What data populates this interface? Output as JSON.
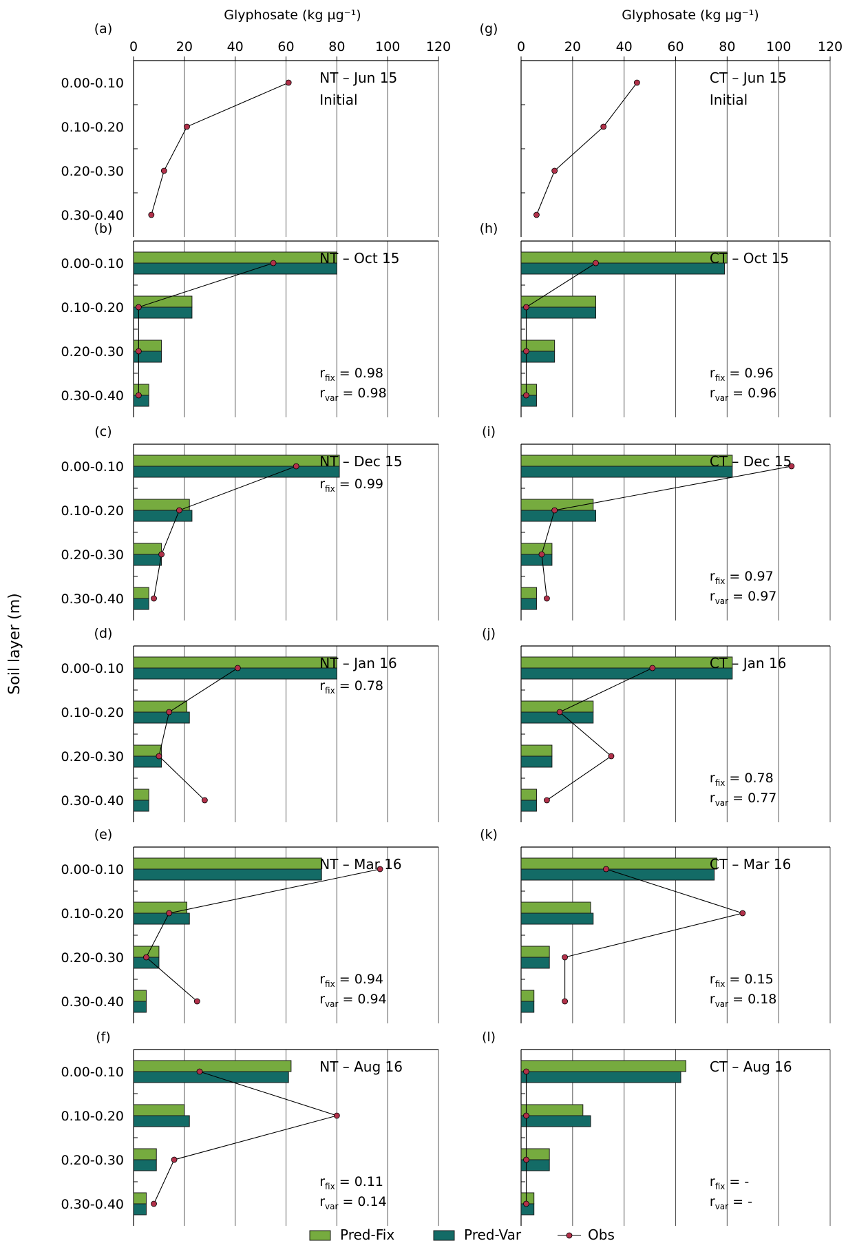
{
  "figure": {
    "x_axis_label_left": "Glyphosate (kg µg⁻¹)",
    "x_axis_label_right": "Glyphosate (kg µg⁻¹)",
    "y_axis_label": "Soil layer (m)",
    "legend": [
      {
        "key": "fix",
        "label": "Pred-Fix",
        "color": "#76ab3f"
      },
      {
        "key": "var",
        "label": "Pred-Var",
        "color": "#136b66"
      },
      {
        "key": "obs",
        "label": "Obs",
        "color": "#b1314a"
      }
    ]
  },
  "chart_data": {
    "type": "bar",
    "orientation": "horizontal",
    "categories": [
      "0.00-0.10",
      "0.10-0.20",
      "0.20-0.30",
      "0.30-0.40"
    ],
    "xticks": [
      "0",
      "20",
      "40",
      "60",
      "80",
      "100",
      "120"
    ],
    "xlim": [
      0,
      120
    ],
    "grid": "vertical",
    "legend_position": "bottom",
    "panels": [
      {
        "id": "(a)",
        "col": 0,
        "row": 0,
        "line1": "NT – Jun 15",
        "line2": "Initial",
        "rfix": "",
        "rvar": "",
        "fix": [],
        "var": [],
        "obs": [
          61,
          21,
          12,
          7
        ]
      },
      {
        "id": "(b)",
        "col": 0,
        "row": 1,
        "line1": "NT – Oct 15",
        "line2": "",
        "rfix": "0.98",
        "rvar": "0.98",
        "fix": [
          80,
          23,
          11,
          6
        ],
        "var": [
          80,
          23,
          11,
          6
        ],
        "obs": [
          55,
          2,
          2,
          2
        ]
      },
      {
        "id": "(c)",
        "col": 0,
        "row": 2,
        "line1": "NT – Dec 15",
        "line2": "",
        "rfix": "0.99",
        "rvar": "",
        "fix": [
          81,
          22,
          11,
          6
        ],
        "var": [
          81,
          23,
          11,
          6
        ],
        "obs": [
          64,
          18,
          11,
          8
        ]
      },
      {
        "id": "(d)",
        "col": 0,
        "row": 3,
        "line1": "NT – Jan 16",
        "line2": "",
        "rfix": "0.78",
        "rvar": "",
        "fix": [
          80,
          21,
          11,
          6
        ],
        "var": [
          80,
          22,
          11,
          6
        ],
        "obs": [
          41,
          14,
          10,
          28
        ]
      },
      {
        "id": "(e)",
        "col": 0,
        "row": 4,
        "line1": "NT – Mar 16",
        "line2": "",
        "rfix": "0.94",
        "rvar": "0.94",
        "fix": [
          74,
          21,
          10,
          5
        ],
        "var": [
          74,
          22,
          10,
          5
        ],
        "obs": [
          97,
          14,
          5,
          25
        ]
      },
      {
        "id": "(f)",
        "col": 0,
        "row": 5,
        "line1": "NT – Aug 16",
        "line2": "",
        "rfix": "0.11",
        "rvar": "0.14",
        "fix": [
          62,
          20,
          9,
          5
        ],
        "var": [
          61,
          22,
          9,
          5
        ],
        "obs": [
          26,
          80,
          16,
          8
        ]
      },
      {
        "id": "(g)",
        "col": 1,
        "row": 0,
        "line1": "CT – Jun 15",
        "line2": "Initial",
        "rfix": "",
        "rvar": "",
        "fix": [],
        "var": [],
        "obs": [
          45,
          32,
          13,
          6
        ]
      },
      {
        "id": "(h)",
        "col": 1,
        "row": 1,
        "line1": "CT – Oct 15",
        "line2": "",
        "rfix": "0.96",
        "rvar": "0.96",
        "fix": [
          80,
          29,
          13,
          6
        ],
        "var": [
          79,
          29,
          13,
          6
        ],
        "obs": [
          29,
          2,
          2,
          2
        ]
      },
      {
        "id": "(i)",
        "col": 1,
        "row": 2,
        "line1": "CT – Dec 15",
        "line2": "",
        "rfix": "0.97",
        "rvar": "0.97",
        "fix": [
          82,
          28,
          12,
          6
        ],
        "var": [
          82,
          29,
          12,
          6
        ],
        "obs": [
          105,
          13,
          8,
          10
        ]
      },
      {
        "id": "(j)",
        "col": 1,
        "row": 3,
        "line1": "CT – Jan 16",
        "line2": "",
        "rfix": "0.78",
        "rvar": "0.77",
        "fix": [
          82,
          28,
          12,
          6
        ],
        "var": [
          82,
          28,
          12,
          6
        ],
        "obs": [
          51,
          15,
          35,
          10
        ]
      },
      {
        "id": "(k)",
        "col": 1,
        "row": 4,
        "line1": "CT – Mar 16",
        "line2": "",
        "rfix": "0.15",
        "rvar": "0.18",
        "fix": [
          76,
          27,
          11,
          5
        ],
        "var": [
          75,
          28,
          11,
          5
        ],
        "obs": [
          33,
          86,
          17,
          17
        ]
      },
      {
        "id": "(l)",
        "col": 1,
        "row": 5,
        "line1": "CT – Aug 16",
        "line2": "",
        "rfix": "-",
        "rvar": "-",
        "fix": [
          64,
          24,
          11,
          5
        ],
        "var": [
          62,
          27,
          11,
          5
        ],
        "obs": [
          2,
          2,
          2,
          2
        ]
      }
    ]
  }
}
